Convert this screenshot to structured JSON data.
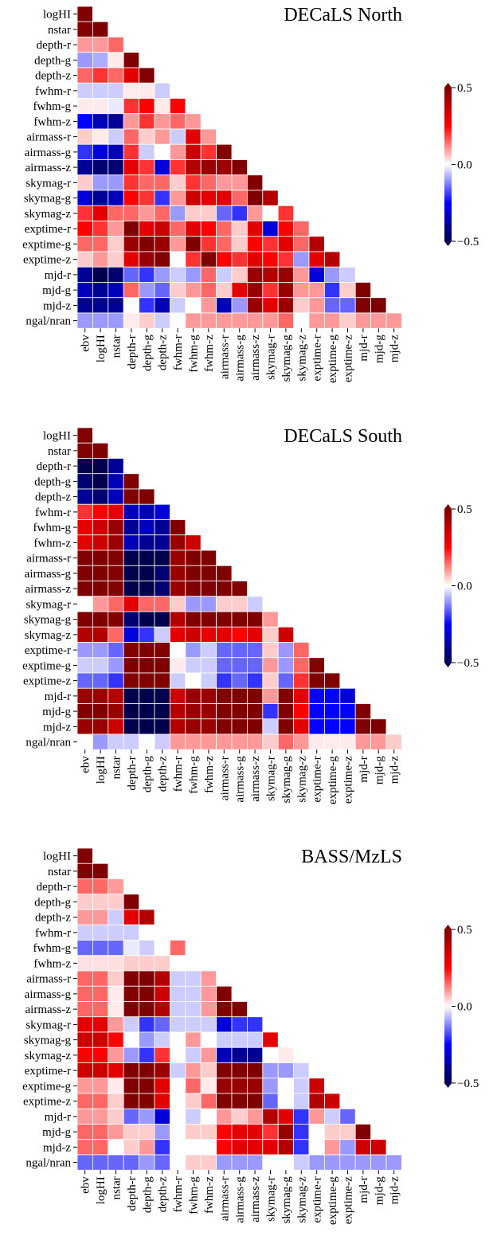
{
  "chart_data": [
    {
      "type": "heatmap",
      "title": "DECaLS North",
      "colormap": "seismic",
      "x": [
        "ebv",
        "logHI",
        "nstar",
        "depth-r",
        "depth-g",
        "depth-z",
        "fwhm-r",
        "fwhm-g",
        "fwhm-z",
        "airmass-r",
        "airmass-g",
        "airmass-z",
        "skymag-r",
        "skymag-g",
        "skymag-z",
        "exptime-r",
        "exptime-g",
        "exptime-z",
        "mjd-r",
        "mjd-g",
        "mjd-z"
      ],
      "y": [
        "logHI",
        "nstar",
        "depth-r",
        "depth-g",
        "depth-z",
        "fwhm-r",
        "fwhm-g",
        "fwhm-z",
        "airmass-r",
        "airmass-g",
        "airmass-z",
        "skymag-r",
        "skymag-g",
        "skymag-z",
        "exptime-r",
        "exptime-g",
        "exptime-z",
        "mjd-r",
        "mjd-g",
        "mjd-z",
        "ngal/nran"
      ],
      "values": [
        [
          0.6
        ],
        [
          0.55,
          0.55
        ],
        [
          0.1,
          0.1,
          0.15
        ],
        [
          -0.1,
          -0.08,
          0.02,
          0.5
        ],
        [
          0.15,
          0.2,
          0.15,
          0.3,
          0.55
        ],
        [
          -0.05,
          -0.05,
          -0.05,
          0.02,
          0.02,
          -0.05
        ],
        [
          0.02,
          0.02,
          -0.02,
          0.2,
          0.25,
          0.02,
          0.25
        ],
        [
          -0.25,
          -0.35,
          -0.4,
          0.1,
          0.2,
          0.1,
          0.15,
          0.1
        ],
        [
          0.05,
          0.02,
          -0.05,
          0.15,
          0.05,
          0.1,
          -0.05,
          0.3,
          0.1
        ],
        [
          -0.2,
          -0.3,
          -0.35,
          0.2,
          -0.05,
          0,
          0.1,
          0.35,
          0.2,
          0.55
        ],
        [
          -0.4,
          -0.45,
          -0.45,
          0.3,
          0.2,
          -0.3,
          0.2,
          0.4,
          0.45,
          0.45,
          0.55
        ],
        [
          0.05,
          -0.1,
          -0.1,
          0.2,
          0.15,
          0.15,
          0.05,
          0.2,
          0.15,
          0.1,
          0.1,
          0.5
        ],
        [
          -0.3,
          -0.4,
          -0.35,
          0.25,
          0.2,
          -0.2,
          0.1,
          0.35,
          0.3,
          0.3,
          0.15,
          0.55,
          0.4
        ],
        [
          0.2,
          0.3,
          0.15,
          0.15,
          0.1,
          0.15,
          -0.1,
          0.05,
          0.05,
          -0.15,
          -0.2,
          0.1,
          0,
          0.2
        ],
        [
          0.25,
          0.2,
          0.1,
          0.55,
          0.3,
          0.35,
          0.15,
          0.3,
          0.25,
          0.15,
          0.05,
          0.3,
          -0.3,
          0.25,
          0.15
        ],
        [
          0.15,
          0.15,
          0.05,
          0.45,
          0.5,
          0.45,
          0.1,
          0.5,
          0.2,
          0.15,
          0.05,
          0.25,
          0.2,
          0.3,
          0.15,
          0.4
        ],
        [
          0.05,
          0.1,
          0.05,
          0.3,
          0.45,
          0.5,
          0,
          0.2,
          0.5,
          0.25,
          0.2,
          0.3,
          0.25,
          0.2,
          -0.1,
          0.3,
          0.4
        ],
        [
          -0.4,
          -0.5,
          -0.45,
          -0.15,
          -0.2,
          -0.1,
          -0.05,
          -0.1,
          0.15,
          -0.05,
          0.05,
          0.45,
          0.4,
          0.45,
          0.1,
          -0.3,
          -0.1,
          -0.05
        ],
        [
          -0.35,
          -0.4,
          -0.35,
          0.15,
          -0.1,
          -0.15,
          0.05,
          0.1,
          0.15,
          0.05,
          0.3,
          0.45,
          0.2,
          0.45,
          0.1,
          0.1,
          -0.2,
          0.05,
          0.5
        ],
        [
          -0.4,
          -0.4,
          -0.4,
          0,
          -0.2,
          -0.35,
          -0.05,
          0,
          0.1,
          -0.35,
          -0.1,
          0.45,
          0.3,
          0.45,
          0.05,
          0.1,
          -0.15,
          -0.15,
          0.5,
          0.5
        ],
        [
          -0.1,
          -0.1,
          -0.1,
          0.02,
          0.05,
          -0.05,
          0,
          0.1,
          0.1,
          0.1,
          0.1,
          0.1,
          0.1,
          0.15,
          0,
          0.1,
          0.1,
          0.05,
          0.1,
          0.1,
          0.1
        ]
      ],
      "zlim": [
        -0.5,
        0.5
      ],
      "zticks": [
        {
          "value": -0.5,
          "label": "−0.5"
        },
        {
          "value": 0,
          "label": "0.0"
        },
        0.5
      ]
    },
    {
      "type": "heatmap",
      "title": "DECaLS South",
      "colormap": "seismic",
      "x": [
        "ebv",
        "logHI",
        "nstar",
        "depth-r",
        "depth-g",
        "depth-z",
        "fwhm-r",
        "fwhm-g",
        "fwhm-z",
        "airmass-r",
        "airmass-g",
        "airmass-z",
        "skymag-r",
        "skymag-g",
        "skymag-z",
        "exptime-r",
        "exptime-g",
        "exptime-z",
        "mjd-r",
        "mjd-g",
        "mjd-z"
      ],
      "y": [
        "logHI",
        "nstar",
        "depth-r",
        "depth-g",
        "depth-z",
        "fwhm-r",
        "fwhm-g",
        "fwhm-z",
        "airmass-r",
        "airmass-g",
        "airmass-z",
        "skymag-r",
        "skymag-g",
        "skymag-z",
        "exptime-r",
        "exptime-g",
        "exptime-z",
        "mjd-r",
        "mjd-g",
        "mjd-z",
        "ngal/nran"
      ],
      "values": [
        [
          0.55
        ],
        [
          0.5,
          0.5
        ],
        [
          -0.5,
          -0.5,
          -0.4
        ],
        [
          -0.45,
          -0.5,
          -0.35,
          0.55
        ],
        [
          -0.4,
          -0.45,
          -0.35,
          0.5,
          0.5
        ],
        [
          0.2,
          0.25,
          0.3,
          -0.35,
          -0.35,
          -0.3
        ],
        [
          0.3,
          0.35,
          0.45,
          -0.4,
          -0.35,
          -0.4,
          0.5
        ],
        [
          0.3,
          0.35,
          0.45,
          -0.35,
          -0.4,
          -0.4,
          0.45,
          0.35
        ],
        [
          0.5,
          0.5,
          0.5,
          -0.5,
          -0.5,
          -0.5,
          0.45,
          0.5,
          0.5
        ],
        [
          0.5,
          0.5,
          0.5,
          -0.5,
          -0.5,
          -0.45,
          0.45,
          0.5,
          0.5,
          0.55
        ],
        [
          0.5,
          0.5,
          0.5,
          -0.5,
          -0.5,
          -0.45,
          0.45,
          0.5,
          0.5,
          0.5,
          0.55
        ],
        [
          0,
          0.1,
          0.15,
          0.3,
          0.15,
          0.15,
          0.05,
          -0.1,
          -0.1,
          0.05,
          0.05,
          -0.05
        ],
        [
          0.5,
          0.5,
          0.5,
          -0.45,
          -0.5,
          -0.5,
          0.4,
          0.5,
          0.5,
          0.5,
          0.55,
          0.5,
          0.1
        ],
        [
          0.4,
          0.4,
          0.15,
          -0.3,
          -0.2,
          -0.05,
          0.3,
          0.35,
          0.3,
          0.3,
          0.25,
          0.3,
          0.05,
          0.35
        ],
        [
          -0.1,
          -0.1,
          -0.15,
          0.5,
          0.5,
          0.5,
          0,
          -0.1,
          -0.05,
          -0.15,
          -0.15,
          -0.15,
          0.05,
          -0.1,
          0.15
        ],
        [
          -0.05,
          -0.05,
          -0.1,
          0.5,
          0.55,
          0.5,
          0.02,
          -0.05,
          -0.05,
          -0.15,
          -0.15,
          -0.15,
          0.1,
          -0.1,
          0.15,
          0.55
        ],
        [
          -0.15,
          -0.15,
          -0.2,
          0.5,
          0.5,
          0.55,
          -0.05,
          0,
          -0.05,
          -0.2,
          -0.15,
          -0.2,
          0.05,
          -0.15,
          0.2,
          0.5,
          0.55
        ],
        [
          0.45,
          0.45,
          0.4,
          -0.55,
          -0.55,
          -0.55,
          0.35,
          0.45,
          0.45,
          0.5,
          0.5,
          0.5,
          0.1,
          0.5,
          0.3,
          -0.25,
          -0.25,
          -0.3
        ],
        [
          0.5,
          0.5,
          0.45,
          -0.55,
          -0.55,
          -0.55,
          0.4,
          0.45,
          0.45,
          0.5,
          0.5,
          0.5,
          -0.2,
          0.5,
          0.25,
          -0.25,
          -0.25,
          -0.25,
          0.55
        ],
        [
          0.45,
          0.45,
          0.35,
          -0.55,
          -0.55,
          -0.55,
          0.4,
          0.45,
          0.45,
          0.5,
          0.5,
          0.5,
          -0.05,
          0.5,
          0.3,
          -0.25,
          -0.25,
          -0.25,
          0.55,
          0.55
        ],
        [
          0,
          -0.1,
          -0.05,
          -0.05,
          0,
          -0.05,
          0.1,
          0.1,
          0.1,
          0.1,
          0.1,
          0.1,
          0.05,
          0.15,
          0.1,
          0.02,
          0.02,
          0.02,
          0.1,
          0.1,
          0.05
        ]
      ],
      "zlim": [
        -0.5,
        0.5
      ],
      "zticks": [
        {
          "value": -0.5,
          "label": "−0.5"
        },
        {
          "value": 0,
          "label": "0.0"
        },
        0.5
      ]
    },
    {
      "type": "heatmap",
      "title": "BASS/MzLS",
      "colormap": "seismic",
      "x": [
        "ebv",
        "logHI",
        "nstar",
        "depth-r",
        "depth-g",
        "depth-z",
        "fwhm-r",
        "fwhm-g",
        "fwhm-z",
        "airmass-r",
        "airmass-g",
        "airmass-z",
        "skymag-r",
        "skymag-g",
        "skymag-z",
        "exptime-r",
        "exptime-g",
        "exptime-z",
        "mjd-r",
        "mjd-g",
        "mjd-z"
      ],
      "y": [
        "logHI",
        "nstar",
        "depth-r",
        "depth-g",
        "depth-z",
        "fwhm-r",
        "fwhm-g",
        "fwhm-z",
        "airmass-r",
        "airmass-g",
        "airmass-z",
        "skymag-r",
        "skymag-g",
        "skymag-z",
        "exptime-r",
        "exptime-g",
        "exptime-z",
        "mjd-r",
        "mjd-g",
        "mjd-z",
        "ngal/nran"
      ],
      "values": [
        [
          0.55
        ],
        [
          0.5,
          0.5
        ],
        [
          0.15,
          0.15,
          0.1
        ],
        [
          0.05,
          0.05,
          0.05,
          0.5
        ],
        [
          0.1,
          0.1,
          -0.05,
          0.3,
          0.4
        ],
        [
          -0.05,
          -0.05,
          -0.05,
          -0.05,
          0,
          0
        ],
        [
          -0.15,
          -0.15,
          -0.15,
          -0.02,
          -0.05,
          0,
          0.15
        ],
        [
          0.03,
          0.03,
          0.03,
          0.05,
          0.05,
          0.05,
          0,
          0
        ],
        [
          0.15,
          0.15,
          0.05,
          0.5,
          0.5,
          0.4,
          -0.05,
          -0.05,
          0.1
        ],
        [
          0.15,
          0.15,
          0.02,
          0.5,
          0.5,
          0.35,
          -0.05,
          -0.05,
          0.1,
          0.5
        ],
        [
          0.15,
          0.15,
          0.02,
          0.5,
          0.5,
          0.4,
          -0.05,
          -0.05,
          0.1,
          0.5,
          0.5
        ],
        [
          0.3,
          0.3,
          0.1,
          -0.05,
          -0.2,
          -0.15,
          -0.05,
          -0.05,
          -0.05,
          -0.3,
          -0.2,
          -0.2
        ],
        [
          0.35,
          0.35,
          0.25,
          0,
          -0.1,
          -0.05,
          0,
          0.1,
          0,
          -0.05,
          -0.05,
          -0.05,
          0.3
        ],
        [
          0.25,
          0.25,
          0.1,
          -0.1,
          -0.2,
          0.2,
          0,
          -0.05,
          0.1,
          -0.35,
          -0.4,
          -0.4,
          0,
          0.02
        ],
        [
          0.35,
          0.35,
          0.3,
          0.5,
          0.5,
          0.45,
          -0.05,
          0.1,
          0.05,
          0.5,
          0.5,
          0.5,
          -0.1,
          -0.1,
          -0.05
        ],
        [
          0.1,
          0.1,
          0.02,
          0.5,
          0.5,
          0.3,
          0,
          0.15,
          0.02,
          0.45,
          0.45,
          0.45,
          -0.1,
          0,
          -0.05,
          0.35
        ],
        [
          0.15,
          0.15,
          0.05,
          0.5,
          0.5,
          0.3,
          0,
          0.05,
          0.15,
          0.5,
          0.5,
          0.5,
          -0.15,
          0,
          -0.05,
          0.4,
          0.35
        ],
        [
          0.1,
          0.1,
          0.05,
          -0.15,
          -0.1,
          -0.3,
          0,
          -0.05,
          0,
          0.1,
          0.05,
          0.1,
          0.4,
          0.3,
          -0.2,
          0.1,
          -0.05,
          -0.15
        ],
        [
          0.15,
          0.15,
          0.1,
          0.05,
          0.05,
          -0.1,
          0,
          0.05,
          0.05,
          0.25,
          0.3,
          0.3,
          0.2,
          0.45,
          -0.2,
          0,
          0.05,
          0.05,
          0.5
        ],
        [
          0.15,
          0.15,
          0,
          0.05,
          0.1,
          -0.2,
          0,
          0,
          0,
          0.25,
          0.3,
          0.3,
          0.3,
          0.4,
          -0.2,
          0,
          0.1,
          -0.1,
          0.35,
          0.35
        ],
        [
          -0.15,
          -0.15,
          -0.15,
          -0.15,
          -0.1,
          -0.15,
          0,
          0.05,
          0.05,
          -0.1,
          -0.1,
          -0.1,
          0,
          0,
          -0.05,
          -0.1,
          -0.1,
          -0.1,
          -0.1,
          -0.1,
          -0.1
        ]
      ],
      "zlim": [
        -0.5,
        0.5
      ],
      "zticks": [
        {
          "value": -0.5,
          "label": "−0.5"
        },
        {
          "value": 0,
          "label": "0.0"
        },
        0.5
      ]
    }
  ]
}
